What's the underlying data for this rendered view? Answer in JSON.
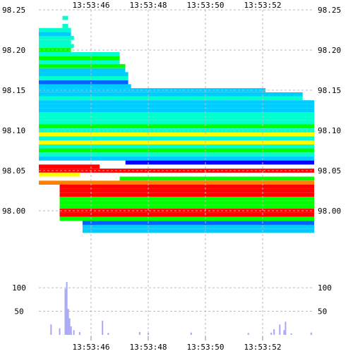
{
  "chart_data": [
    {
      "type": "heatmap",
      "title": "",
      "xlabel": "",
      "ylabel": "",
      "x_ticks": [
        "13:53:46",
        "13:53:48",
        "13:53:50",
        "13:53:52"
      ],
      "y_ticks": [
        "98.25",
        "98.20",
        "98.15",
        "98.10",
        "98.05",
        "98.00"
      ],
      "ylim": [
        97.97,
        98.262
      ],
      "grid": true,
      "color_scale": [
        "#ff0000",
        "#ff7f00",
        "#ffff00",
        "#00ff00",
        "#00ffcc",
        "#00ccff",
        "#0066ff",
        "#0000ff",
        "#8000ff"
      ],
      "levels": [
        {
          "price": 98.24,
          "color": "#00ffcc",
          "from": "13:53:45.1",
          "to": "13:53:45.1"
        },
        {
          "price": 98.23,
          "color": "#00ffcc",
          "from": "13:53:45.1",
          "to": "13:53:45.1"
        },
        {
          "price": 98.225,
          "color": "#00ffcc",
          "from": "13:53:44.1",
          "to": "13:53:45.2"
        },
        {
          "price": 98.22,
          "color": "#00ccff",
          "from": "13:53:44.1",
          "to": "13:53:45.2"
        },
        {
          "price": 98.215,
          "color": "#00ffcc",
          "from": "13:53:44.1",
          "to": "13:53:45.3"
        },
        {
          "price": 98.21,
          "color": "#00ffcc",
          "from": "13:53:44.1",
          "to": "13:53:45.2"
        },
        {
          "price": 98.205,
          "color": "#00ffcc",
          "from": "13:53:44.1",
          "to": "13:53:45.3"
        },
        {
          "price": 98.2,
          "color": "#00ff00",
          "from": "13:53:44.1",
          "to": "13:53:45.2"
        },
        {
          "price": 98.195,
          "color": "#00ffcc",
          "from": "13:53:44.1",
          "to": "13:53:46.9"
        },
        {
          "price": 98.19,
          "color": "#00ff00",
          "from": "13:53:44.1",
          "to": "13:53:46.9"
        },
        {
          "price": 98.185,
          "color": "#00ffcc",
          "from": "13:53:44.1",
          "to": "13:53:46.9"
        },
        {
          "price": 98.18,
          "color": "#00ff00",
          "from": "13:53:44.1",
          "to": "13:53:47.1"
        },
        {
          "price": 98.175,
          "color": "#00ccff",
          "from": "13:53:44.1",
          "to": "13:53:47.1"
        },
        {
          "price": 98.17,
          "color": "#00ccff",
          "from": "13:53:44.1",
          "to": "13:53:47.2"
        },
        {
          "price": 98.165,
          "color": "#00ffcc",
          "from": "13:53:44.1",
          "to": "13:53:47.2"
        },
        {
          "price": 98.16,
          "color": "#0066ff",
          "from": "13:53:44.1",
          "to": "13:53:47.2"
        },
        {
          "price": 98.155,
          "color": "#00ccff",
          "from": "13:53:44.1",
          "to": "13:53:47.3"
        },
        {
          "price": 98.15,
          "color": "#00ccff",
          "from": "13:53:44.1",
          "to": "13:53:52.0"
        },
        {
          "price": 98.145,
          "color": "#00ccff",
          "from": "13:53:44.1",
          "to": "13:53:53.3"
        },
        {
          "price": 98.14,
          "color": "#00ffcc",
          "from": "13:53:44.1",
          "to": "13:53:53.3"
        },
        {
          "price": 98.135,
          "color": "#00ccff",
          "from": "13:53:44.1",
          "to": "13:53:53.8"
        },
        {
          "price": 98.13,
          "color": "#00ccff",
          "from": "13:53:44.1",
          "to": "13:53:53.8"
        },
        {
          "price": 98.125,
          "color": "#00ccff",
          "from": "13:53:44.1",
          "to": "13:53:53.8"
        },
        {
          "price": 98.12,
          "color": "#00ffcc",
          "from": "13:53:44.1",
          "to": "13:53:53.8"
        },
        {
          "price": 98.115,
          "color": "#00ffcc",
          "from": "13:53:44.1",
          "to": "13:53:53.8"
        },
        {
          "price": 98.11,
          "color": "#00ffcc",
          "from": "13:53:44.1",
          "to": "13:53:53.8"
        },
        {
          "price": 98.105,
          "color": "#00ff00",
          "from": "13:53:44.1",
          "to": "13:53:53.8"
        },
        {
          "price": 98.1,
          "color": "#00ffcc",
          "from": "13:53:44.1",
          "to": "13:53:53.8"
        },
        {
          "price": 98.095,
          "color": "#ffff00",
          "from": "13:53:44.1",
          "to": "13:53:53.8"
        },
        {
          "price": 98.09,
          "color": "#00ffcc",
          "from": "13:53:44.1",
          "to": "13:53:53.8"
        },
        {
          "price": 98.085,
          "color": "#ffff00",
          "from": "13:53:44.1",
          "to": "13:53:53.8"
        },
        {
          "price": 98.08,
          "color": "#00ffcc",
          "from": "13:53:44.1",
          "to": "13:53:53.8"
        },
        {
          "price": 98.075,
          "color": "#00ff00",
          "from": "13:53:44.1",
          "to": "13:53:53.8"
        },
        {
          "price": 98.07,
          "color": "#00ffcc",
          "from": "13:53:44.1",
          "to": "13:53:53.8"
        },
        {
          "price": 98.065,
          "color": "#00ccff",
          "from": "13:53:44.1",
          "to": "13:53:53.8"
        },
        {
          "price": 98.06,
          "color": "#0000ff",
          "from": "13:53:47.3",
          "to": "13:53:53.8"
        },
        {
          "price": 98.055,
          "color": "#ff0000",
          "from": "13:53:44.1",
          "to": "13:53:46.2"
        },
        {
          "price": 98.05,
          "color": "#ff0000",
          "from": "13:53:44.1",
          "to": "13:53:53.8"
        },
        {
          "price": 98.045,
          "color": "#ffff00",
          "from": "13:53:44.1",
          "to": "13:53:45.5"
        },
        {
          "price": 98.04,
          "color": "#00ff00",
          "from": "13:53:47.1",
          "to": "13:53:53.8"
        },
        {
          "price": 98.035,
          "color": "#ff7f00",
          "from": "13:53:44.1",
          "to": "13:53:53.8"
        },
        {
          "price": 98.03,
          "color": "#ff0000",
          "from": "13:53:45.0",
          "to": "13:53:53.8"
        },
        {
          "price": 98.025,
          "color": "#ff0000",
          "from": "13:53:45.0",
          "to": "13:53:53.8"
        },
        {
          "price": 98.02,
          "color": "#ff0000",
          "from": "13:53:45.0",
          "to": "13:53:53.8"
        },
        {
          "price": 98.015,
          "color": "#00ff00",
          "from": "13:53:45.0",
          "to": "13:53:53.8"
        },
        {
          "price": 98.01,
          "color": "#00ff00",
          "from": "13:53:45.0",
          "to": "13:53:53.8"
        },
        {
          "price": 98.005,
          "color": "#00ff00",
          "from": "13:53:45.0",
          "to": "13:53:53.8"
        },
        {
          "price": 98.0,
          "color": "#ff0000",
          "from": "13:53:45.0",
          "to": "13:53:53.8"
        },
        {
          "price": 97.995,
          "color": "#ff0000",
          "from": "13:53:45.0",
          "to": "13:53:53.8"
        },
        {
          "price": 97.99,
          "color": "#00ff00",
          "from": "13:53:45.0",
          "to": "13:53:53.8"
        },
        {
          "price": 97.985,
          "color": "#0066ff",
          "from": "13:53:45.8",
          "to": "13:53:53.8"
        },
        {
          "price": 97.98,
          "color": "#00ccff",
          "from": "13:53:45.8",
          "to": "13:53:53.8"
        },
        {
          "price": 97.975,
          "color": "#00ccff",
          "from": "13:53:45.8",
          "to": "13:53:53.8"
        }
      ]
    },
    {
      "type": "bar",
      "title": "",
      "xlabel": "",
      "ylabel": "",
      "x_ticks": [
        "13:53:46",
        "13:53:48",
        "13:53:50",
        "13:53:52"
      ],
      "y_ticks": [
        "100",
        "50"
      ],
      "ylim": [
        0,
        130
      ],
      "grid": true,
      "bar_color": "#a8a8f0",
      "x": [
        "13:53:44.6",
        "13:53:44.9",
        "13:53:45.1",
        "13:53:45.15",
        "13:53:45.2",
        "13:53:45.25",
        "13:53:45.3",
        "13:53:45.4",
        "13:53:45.6",
        "13:53:46.4",
        "13:53:46.6",
        "13:53:47.7",
        "13:53:48.0",
        "13:53:49.5",
        "13:53:51.5",
        "13:53:52.3",
        "13:53:52.4",
        "13:53:52.6",
        "13:53:52.75",
        "13:53:52.8",
        "13:53:53.0",
        "13:53:53.7"
      ],
      "values": [
        22,
        14,
        98,
        112,
        55,
        35,
        18,
        10,
        6,
        30,
        4,
        6,
        4,
        5,
        4,
        5,
        12,
        22,
        10,
        28,
        3,
        5
      ]
    }
  ]
}
